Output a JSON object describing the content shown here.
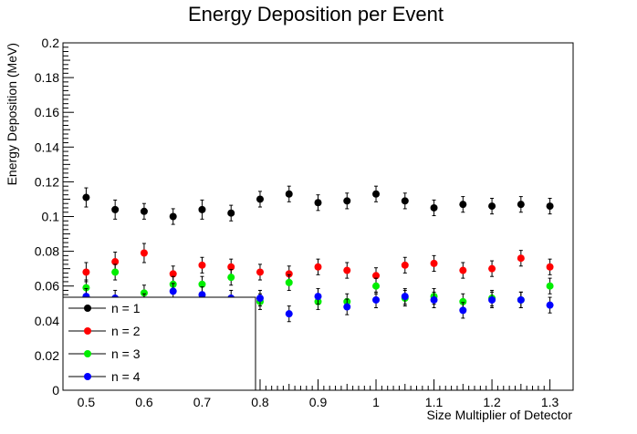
{
  "chart_data": {
    "type": "scatter",
    "title": "Energy Deposition per Event",
    "xlabel": "Size Multiplier of Detector",
    "ylabel": "Energy Deposition (MeV)",
    "xlim": [
      0.46,
      1.34
    ],
    "ylim": [
      0,
      0.2
    ],
    "x_ticks": [
      0.5,
      0.6,
      0.7,
      0.8,
      0.9,
      1,
      1.1,
      1.2,
      1.3
    ],
    "x_tick_labels": [
      "0.5",
      "0.6",
      "0.7",
      "0.8",
      "0.9",
      "1",
      "1.1",
      "1.2",
      "1.3"
    ],
    "y_ticks": [
      0,
      0.02,
      0.04,
      0.06,
      0.08,
      0.1,
      0.12,
      0.14,
      0.16,
      0.18,
      0.2
    ],
    "y_tick_labels": [
      "0",
      "0.02",
      "0.04",
      "0.06",
      "0.08",
      "0.1",
      "0.12",
      "0.14",
      "0.16",
      "0.18",
      "0.2"
    ],
    "grid": false,
    "legend_position": "bottom-left",
    "x": [
      0.5,
      0.55,
      0.6,
      0.65,
      0.7,
      0.75,
      0.8,
      0.85,
      0.9,
      0.95,
      1.0,
      1.05,
      1.1,
      1.15,
      1.2,
      1.25,
      1.3
    ],
    "series": [
      {
        "name": "n = 1",
        "color": "#000000",
        "values": [
          0.111,
          0.104,
          0.103,
          0.1,
          0.104,
          0.102,
          0.11,
          0.113,
          0.108,
          0.109,
          0.113,
          0.109,
          0.105,
          0.107,
          0.106,
          0.107,
          0.106
        ],
        "errors": [
          0.0055,
          0.0055,
          0.0045,
          0.0045,
          0.0055,
          0.0045,
          0.0045,
          0.0045,
          0.0045,
          0.0045,
          0.0045,
          0.0045,
          0.0045,
          0.0045,
          0.0045,
          0.0045,
          0.0045
        ]
      },
      {
        "name": "n = 2",
        "color": "#ff0000",
        "values": [
          0.068,
          0.074,
          0.079,
          0.067,
          0.072,
          0.071,
          0.068,
          0.067,
          0.071,
          0.069,
          0.066,
          0.072,
          0.073,
          0.069,
          0.07,
          0.076,
          0.071
        ],
        "errors": [
          0.0055,
          0.0055,
          0.0055,
          0.0045,
          0.0045,
          0.0045,
          0.0045,
          0.0045,
          0.0045,
          0.0045,
          0.0045,
          0.0045,
          0.0045,
          0.0045,
          0.0045,
          0.0045,
          0.0045
        ]
      },
      {
        "name": "n = 3",
        "color": "#00ee00",
        "values": [
          0.059,
          0.068,
          0.056,
          0.061,
          0.061,
          0.065,
          0.051,
          0.062,
          0.051,
          0.051,
          0.06,
          0.053,
          0.054,
          0.051,
          0.053,
          0.052,
          0.06
        ],
        "errors": [
          0.0045,
          0.0045,
          0.0045,
          0.0045,
          0.0045,
          0.0045,
          0.0045,
          0.0045,
          0.0045,
          0.0045,
          0.0045,
          0.0045,
          0.0045,
          0.0045,
          0.0045,
          0.0045,
          0.0045
        ]
      },
      {
        "name": "n = 4",
        "color": "#0000ff",
        "values": [
          0.054,
          0.053,
          0.051,
          0.057,
          0.055,
          0.053,
          0.053,
          0.044,
          0.054,
          0.048,
          0.052,
          0.054,
          0.052,
          0.046,
          0.052,
          0.052,
          0.049
        ],
        "errors": [
          0.0045,
          0.0045,
          0.0045,
          0.0045,
          0.0045,
          0.0045,
          0.0045,
          0.0045,
          0.0045,
          0.0045,
          0.0045,
          0.0045,
          0.0045,
          0.0045,
          0.0045,
          0.0045,
          0.0045
        ]
      }
    ]
  }
}
